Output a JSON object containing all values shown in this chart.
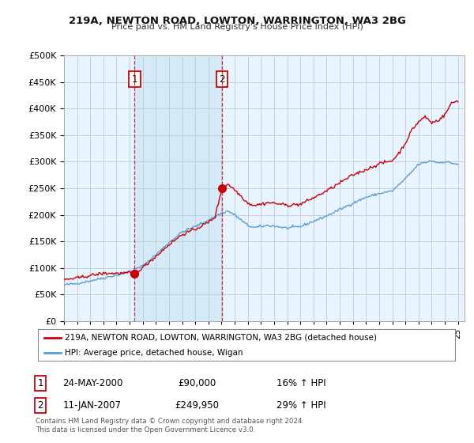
{
  "title_line1": "219A, NEWTON ROAD, LOWTON, WARRINGTON, WA3 2BG",
  "title_line2": "Price paid vs. HM Land Registry's House Price Index (HPI)",
  "ylim": [
    0,
    500000
  ],
  "yticks": [
    0,
    50000,
    100000,
    150000,
    200000,
    250000,
    300000,
    350000,
    400000,
    450000,
    500000
  ],
  "ytick_labels": [
    "£0",
    "£50K",
    "£100K",
    "£150K",
    "£200K",
    "£250K",
    "£300K",
    "£350K",
    "£400K",
    "£450K",
    "£500K"
  ],
  "hpi_color": "#5a9fd4",
  "price_color": "#cc0000",
  "marker_color": "#cc0000",
  "sale1_x": 2000.38,
  "sale1_y": 90000,
  "sale2_x": 2007.03,
  "sale2_y": 249950,
  "vline1_x": 2000.38,
  "vline2_x": 2007.03,
  "legend_label_price": "219A, NEWTON ROAD, LOWTON, WARRINGTON, WA3 2BG (detached house)",
  "legend_label_hpi": "HPI: Average price, detached house, Wigan",
  "annotation1_num": "1",
  "annotation1_date": "24-MAY-2000",
  "annotation1_price": "£90,000",
  "annotation1_hpi": "16% ↑ HPI",
  "annotation2_num": "2",
  "annotation2_date": "11-JAN-2007",
  "annotation2_price": "£249,950",
  "annotation2_hpi": "29% ↑ HPI",
  "footer": "Contains HM Land Registry data © Crown copyright and database right 2024.\nThis data is licensed under the Open Government Licence v3.0.",
  "bg_color": "#ffffff",
  "plot_bg_color": "#e8f4ff",
  "grid_color": "#bbccdd",
  "shade_color": "#d0e8f8",
  "xmin": 1995.0,
  "xmax": 2025.5
}
